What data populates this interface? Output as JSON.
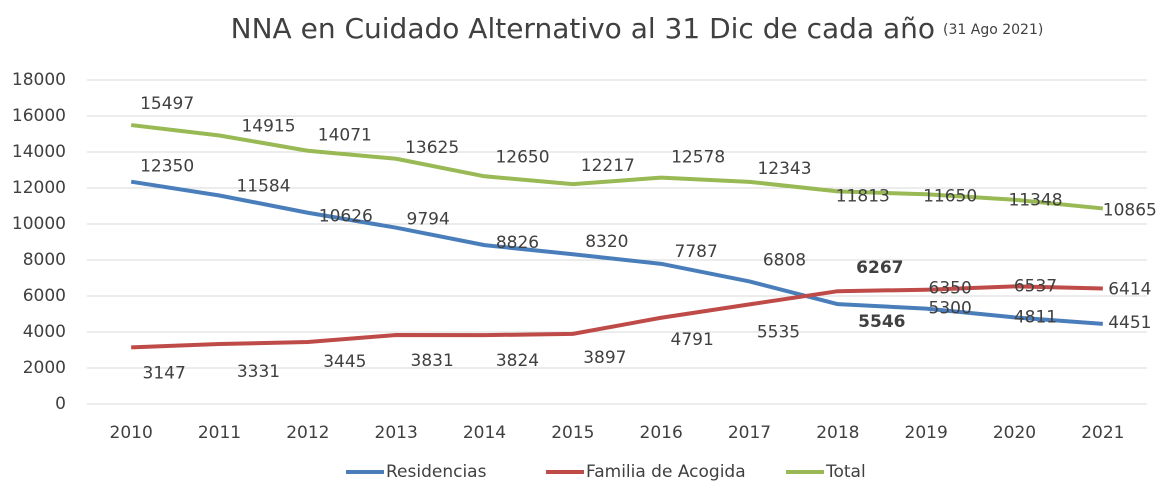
{
  "chart_data": {
    "type": "line",
    "title": "NNA en Cuidado Alternativo al 31 Dic de cada año",
    "subtitle": "(31 Ago 2021)",
    "categories": [
      "2010",
      "2011",
      "2012",
      "2013",
      "2014",
      "2015",
      "2016",
      "2017",
      "2018",
      "2019",
      "2020",
      "2021"
    ],
    "series": [
      {
        "name": "Residencias",
        "color": "#4a7ebb",
        "values": [
          12350,
          11584,
          10626,
          9794,
          8826,
          8320,
          7787,
          6808,
          5546,
          5300,
          4811,
          4451
        ]
      },
      {
        "name": "Familia de Acogida",
        "color": "#be4b48",
        "values": [
          3147,
          3331,
          3445,
          3831,
          3824,
          3897,
          4791,
          5535,
          6267,
          6350,
          6537,
          6414
        ]
      },
      {
        "name": "Total",
        "color": "#98b954",
        "values": [
          15497,
          14915,
          14071,
          13625,
          12650,
          12217,
          12578,
          12343,
          11813,
          11650,
          11348,
          10865
        ]
      }
    ],
    "ylim": [
      0,
      18000
    ],
    "yticks": [
      0,
      2000,
      4000,
      6000,
      8000,
      10000,
      12000,
      14000,
      16000,
      18000
    ],
    "grid": true,
    "legend": "bottom"
  }
}
